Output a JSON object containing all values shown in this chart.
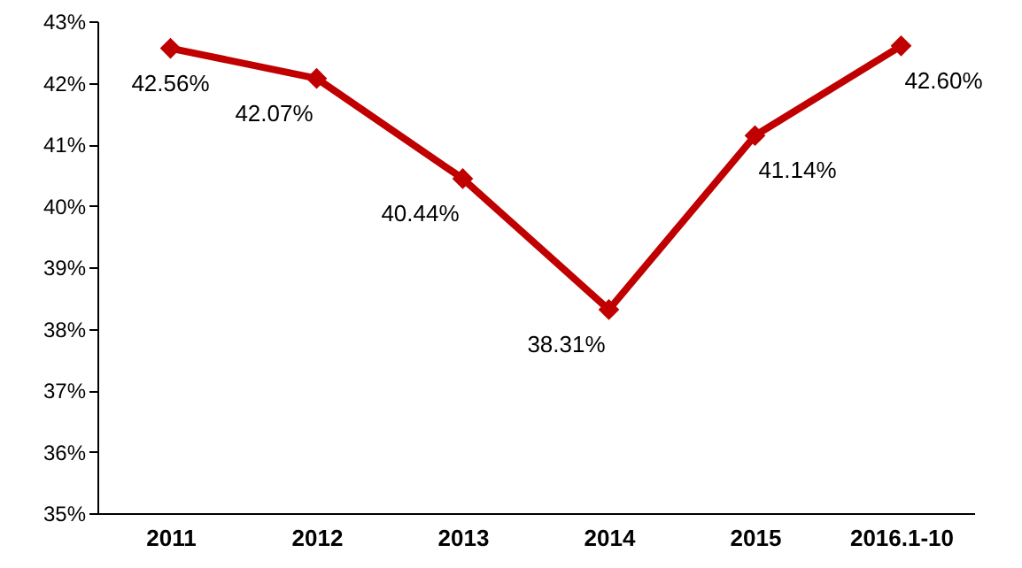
{
  "chart_data": {
    "type": "line",
    "categories": [
      "2011",
      "2012",
      "2013",
      "2014",
      "2015",
      "2016.1-10"
    ],
    "series": [
      {
        "color": "#c00000",
        "values": [
          42.56,
          42.07,
          40.44,
          38.31,
          41.14,
          42.6
        ],
        "value_labels": [
          "42.56%",
          "42.07%",
          "40.44%",
          "38.31%",
          "41.14%",
          "42.60%"
        ]
      }
    ],
    "ylim": [
      35,
      43
    ],
    "yticks": [
      {
        "value": 35,
        "label": "35%"
      },
      {
        "value": 36,
        "label": "36%"
      },
      {
        "value": 37,
        "label": "37%"
      },
      {
        "value": 38,
        "label": "38%"
      },
      {
        "value": 39,
        "label": "39%"
      },
      {
        "value": 40,
        "label": "40%"
      },
      {
        "value": 41,
        "label": "41%"
      },
      {
        "value": 42,
        "label": "42%"
      },
      {
        "value": 43,
        "label": "43%"
      }
    ],
    "marker": "diamond",
    "line_style": "solid",
    "grid": false
  }
}
